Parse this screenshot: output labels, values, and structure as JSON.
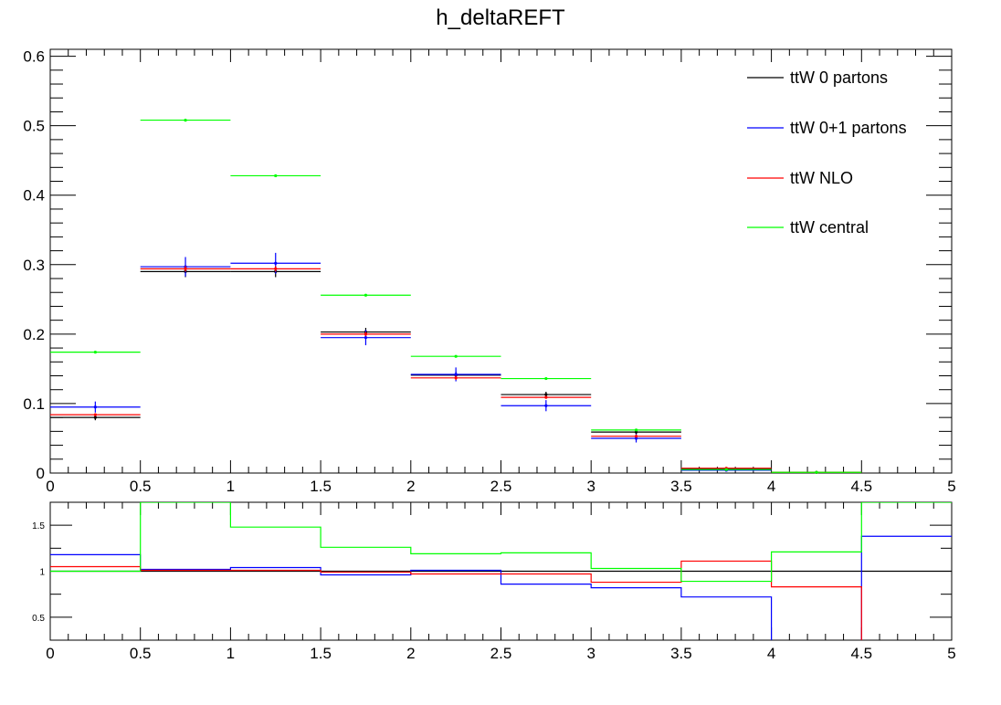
{
  "title": "h_deltaREFT",
  "chart_data": [
    {
      "type": "histogram",
      "title": "h_deltaREFT",
      "xlim": [
        0,
        5
      ],
      "ylim": [
        0,
        0.61
      ],
      "bin_edges": [
        0,
        0.5,
        1,
        1.5,
        2,
        2.5,
        3,
        3.5,
        4,
        4.5,
        5
      ],
      "x_ticks": [
        "0",
        "0.5",
        "1",
        "1.5",
        "2",
        "2.5",
        "3",
        "3.5",
        "4",
        "4.5",
        "5"
      ],
      "y_ticks": [
        "0",
        "0.1",
        "0.2",
        "0.3",
        "0.4",
        "0.5",
        "0.6"
      ],
      "legend_position": "top-right",
      "series": [
        {
          "name": "ttW 0 partons",
          "color": "#000000",
          "values": [
            0.08,
            0.29,
            0.29,
            0.203,
            0.141,
            0.113,
            0.059,
            0.006,
            0.001,
            0.0
          ],
          "errors": [
            0.004,
            0.008,
            0.008,
            0.006,
            0.005,
            0.004,
            0.003,
            0.001,
            0.0005,
            0.0
          ]
        },
        {
          "name": "ttW 0+1 partons",
          "color": "#0000ff",
          "values": [
            0.095,
            0.297,
            0.302,
            0.195,
            0.142,
            0.097,
            0.05,
            0.004,
            0.0,
            0.0
          ],
          "errors": [
            0.008,
            0.014,
            0.015,
            0.011,
            0.01,
            0.008,
            0.006,
            0.002,
            0.0,
            0.0
          ]
        },
        {
          "name": "ttW NLO",
          "color": "#ff0000",
          "values": [
            0.084,
            0.294,
            0.294,
            0.2,
            0.137,
            0.109,
            0.053,
            0.007,
            0.001,
            0.0
          ],
          "errors": [
            0.002,
            0.004,
            0.004,
            0.003,
            0.003,
            0.002,
            0.002,
            0.0005,
            0.0003,
            0.0
          ]
        },
        {
          "name": "ttW central",
          "color": "#00ff00",
          "values": [
            0.174,
            0.508,
            0.428,
            0.256,
            0.168,
            0.136,
            0.062,
            0.005,
            0.001,
            0.0
          ],
          "errors": [
            0.001,
            0.002,
            0.002,
            0.001,
            0.001,
            0.001,
            0.001,
            0.0003,
            0.0001,
            0.0
          ]
        }
      ]
    },
    {
      "type": "ratio",
      "xlim": [
        0,
        5
      ],
      "ylim": [
        0.25,
        1.75
      ],
      "bin_edges": [
        0,
        0.5,
        1,
        1.5,
        2,
        2.5,
        3,
        3.5,
        4,
        4.5,
        5
      ],
      "x_ticks": [
        "0",
        "0.5",
        "1",
        "1.5",
        "2",
        "2.5",
        "3",
        "3.5",
        "4",
        "4.5",
        "5"
      ],
      "y_ticks": [
        "0.5",
        "1",
        "1.5"
      ],
      "series": [
        {
          "name": "ttW 0 partons",
          "color": "#000000",
          "values": [
            1.0,
            1.0,
            1.0,
            1.0,
            1.0,
            1.0,
            1.0,
            1.0,
            1.0,
            1.0
          ]
        },
        {
          "name": "ttW 0+1 partons",
          "color": "#0000ff",
          "values": [
            1.18,
            1.02,
            1.04,
            0.96,
            1.01,
            0.86,
            0.82,
            0.72,
            0.0,
            1.38
          ]
        },
        {
          "name": "ttW NLO",
          "color": "#ff0000",
          "values": [
            1.05,
            1.01,
            1.01,
            0.99,
            0.97,
            0.97,
            0.88,
            1.11,
            0.83,
            0.0
          ]
        },
        {
          "name": "ttW central",
          "color": "#00ff00",
          "values": [
            1.0,
            1.75,
            1.48,
            1.26,
            1.19,
            1.2,
            1.03,
            0.89,
            1.21,
            1.75
          ]
        }
      ]
    }
  ]
}
